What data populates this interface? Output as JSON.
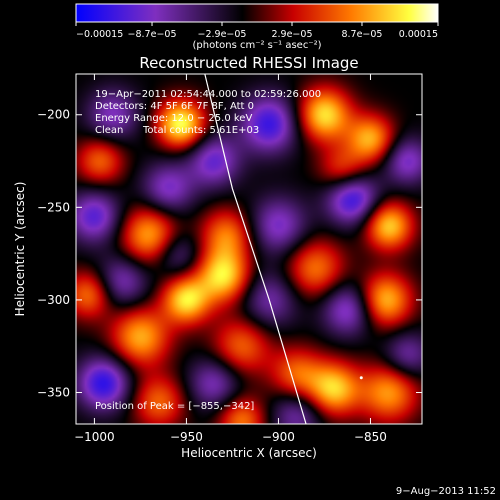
{
  "chart_data": {
    "type": "heatmap",
    "title": "Reconstructed RHESSI Image",
    "xlabel": "Heliocentric X (arcsec)",
    "ylabel": "Heliocentric Y (arcsec)",
    "xlim": [
      -1010,
      -822
    ],
    "ylim": [
      -367,
      -178
    ],
    "x_ticks": [
      -1000,
      -950,
      -900,
      -850
    ],
    "x_tick_labels": [
      "−1000",
      "−950",
      "−900",
      "−850"
    ],
    "y_ticks": [
      -200,
      -250,
      -300,
      -350
    ],
    "y_tick_labels": [
      "−200",
      "−250",
      "−300",
      "−350"
    ],
    "colorbar": {
      "min": -0.00015,
      "max": 0.00015,
      "tick_values": [
        -0.00015,
        -8.7e-05,
        -2.9e-05,
        2.9e-05,
        8.7e-05,
        0.00015
      ],
      "tick_labels": [
        "−0.00015",
        "−8.7e−05",
        "−2.9e−05",
        "2.9e−05",
        "8.7e−05",
        "0.00015"
      ],
      "unit_label": "(photons cm⁻² s⁻¹ asec⁻²)",
      "colormap": [
        "#0000ff",
        "#7f2fbf",
        "#000000",
        "#c80000",
        "#ff7a00",
        "#ffff40",
        "#ffffff"
      ]
    },
    "annotations": {
      "time_range": "19−Apr−2011 02:54:44.000 to 02:59:26.000",
      "detectors": "Detectors: 4F 5F 6F 7F 8F, Att 0",
      "energy_range": "Energy Range: 12.0 − 25.0 keV",
      "method": "Clean",
      "total_counts": "Total counts: 5.61E+03",
      "peak_position": "Position of Peak = [−855,−342]"
    },
    "peak": [
      -855,
      -342
    ],
    "limb_curve": [
      [
        -940,
        -178
      ],
      [
        -925,
        -240
      ],
      [
        -905,
        -300
      ],
      [
        -885,
        -367
      ]
    ],
    "image_sources": [
      {
        "x": -953,
        "y": -205,
        "amp": 1.0,
        "s": 9
      },
      {
        "x": -875,
        "y": -200,
        "amp": 0.9,
        "s": 10
      },
      {
        "x": -850,
        "y": -213,
        "amp": 0.75,
        "s": 9
      },
      {
        "x": -997,
        "y": -225,
        "amp": 0.55,
        "s": 9
      },
      {
        "x": -970,
        "y": -265,
        "amp": 0.75,
        "s": 11
      },
      {
        "x": -928,
        "y": -265,
        "amp": 0.6,
        "s": 10
      },
      {
        "x": -930,
        "y": -287,
        "amp": 0.9,
        "s": 10
      },
      {
        "x": -880,
        "y": -283,
        "amp": 0.6,
        "s": 11
      },
      {
        "x": -840,
        "y": -260,
        "amp": 0.85,
        "s": 9
      },
      {
        "x": -842,
        "y": -300,
        "amp": 0.8,
        "s": 10
      },
      {
        "x": -975,
        "y": -320,
        "amp": 0.75,
        "s": 11
      },
      {
        "x": -950,
        "y": -300,
        "amp": 0.9,
        "s": 9
      },
      {
        "x": -920,
        "y": -325,
        "amp": 0.55,
        "s": 11
      },
      {
        "x": -890,
        "y": -340,
        "amp": 0.55,
        "s": 10
      },
      {
        "x": -870,
        "y": -348,
        "amp": 0.85,
        "s": 10
      },
      {
        "x": -840,
        "y": -350,
        "amp": 0.7,
        "s": 11
      },
      {
        "x": -965,
        "y": -355,
        "amp": 0.55,
        "s": 10
      },
      {
        "x": -920,
        "y": -365,
        "amp": 0.6,
        "s": 9
      },
      {
        "x": -1003,
        "y": -297,
        "amp": 0.6,
        "s": 9
      },
      {
        "x": -865,
        "y": -230,
        "amp": 0.5,
        "s": 9
      },
      {
        "x": -905,
        "y": -205,
        "amp": -0.75,
        "s": 11
      },
      {
        "x": -935,
        "y": -225,
        "amp": -0.6,
        "s": 10
      },
      {
        "x": -860,
        "y": -245,
        "amp": -0.8,
        "s": 10
      },
      {
        "x": -830,
        "y": -225,
        "amp": -0.55,
        "s": 9
      },
      {
        "x": -990,
        "y": -200,
        "amp": -0.5,
        "s": 10
      },
      {
        "x": -1000,
        "y": -255,
        "amp": -0.65,
        "s": 10
      },
      {
        "x": -960,
        "y": -240,
        "amp": -0.55,
        "s": 10
      },
      {
        "x": -900,
        "y": -260,
        "amp": -0.55,
        "s": 11
      },
      {
        "x": -905,
        "y": -300,
        "amp": -0.45,
        "s": 11
      },
      {
        "x": -862,
        "y": -305,
        "amp": -0.6,
        "s": 10
      },
      {
        "x": -830,
        "y": -330,
        "amp": -0.45,
        "s": 9
      },
      {
        "x": -985,
        "y": -290,
        "amp": -0.5,
        "s": 10
      },
      {
        "x": -995,
        "y": -345,
        "amp": -0.8,
        "s": 10
      },
      {
        "x": -935,
        "y": -345,
        "amp": -0.5,
        "s": 10
      },
      {
        "x": -890,
        "y": -362,
        "amp": -0.45,
        "s": 10
      },
      {
        "x": -955,
        "y": -275,
        "amp": -0.4,
        "s": 9
      }
    ]
  },
  "footer": {
    "date": "9−Aug−2013 11:52"
  }
}
